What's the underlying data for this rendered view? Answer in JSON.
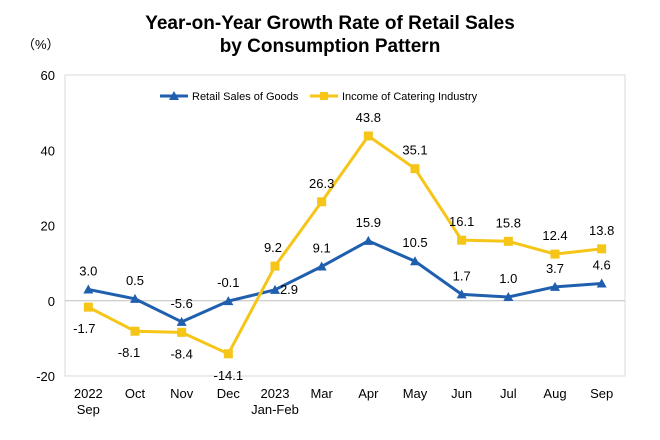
{
  "chart_data": {
    "type": "line",
    "title_line1": "Year-on-Year Growth Rate of Retail Sales",
    "title_line2": "by Consumption Pattern",
    "unit_label": "（%）",
    "categories": [
      [
        "2022",
        "Sep"
      ],
      [
        "Oct"
      ],
      [
        "Nov"
      ],
      [
        "Dec"
      ],
      [
        "2023",
        "Jan-Feb"
      ],
      [
        "Mar"
      ],
      [
        "Apr"
      ],
      [
        "May"
      ],
      [
        "Jun"
      ],
      [
        "Jul"
      ],
      [
        "Aug"
      ],
      [
        "Sep"
      ]
    ],
    "ylim": [
      -20,
      60
    ],
    "yticks": [
      -20,
      0,
      20,
      40,
      60
    ],
    "legend_position": "top",
    "series": [
      {
        "name": "Retail Sales of Goods",
        "color": "#1f5fae",
        "marker": "triangle",
        "values": [
          3.0,
          0.5,
          -5.6,
          -0.1,
          2.9,
          9.1,
          15.9,
          10.5,
          1.7,
          1.0,
          3.7,
          4.6
        ],
        "labels": [
          "3.0",
          "0.5",
          "-5.6",
          "-0.1",
          "2.9",
          "9.1",
          "15.9",
          "10.5",
          "1.7",
          "1.0",
          "3.7",
          "4.6"
        ]
      },
      {
        "name": "Income of Catering Industry",
        "color": "#f5c518",
        "marker": "square",
        "values": [
          -1.7,
          -8.1,
          -8.4,
          -14.1,
          9.2,
          26.3,
          43.8,
          35.1,
          16.1,
          15.8,
          12.4,
          13.8
        ],
        "labels": [
          "-1.7",
          "-8.1",
          "-8.4",
          "-14.1",
          "9.2",
          "26.3",
          "43.8",
          "35.1",
          "16.1",
          "15.8",
          "12.4",
          "13.8"
        ]
      }
    ]
  }
}
